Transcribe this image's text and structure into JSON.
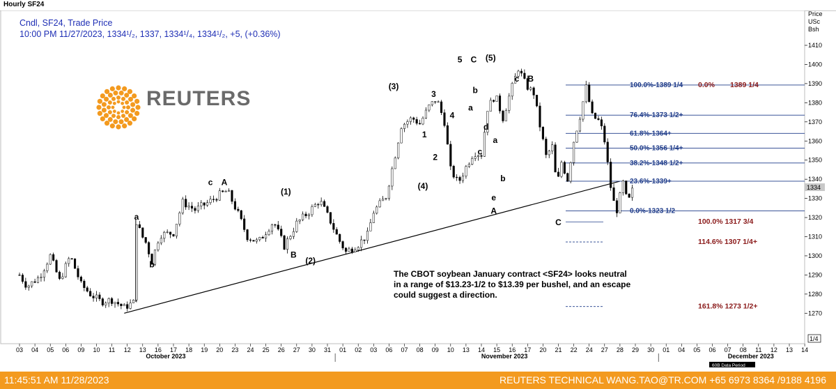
{
  "window": {
    "title": "Hourly SF24"
  },
  "header": {
    "line1": "Cndl, SF24, Trade Price",
    "line2": "10:00 PM 11/27/2023, 1334¹/₂, 1337, 1334¹/₄, 1334¹/₂, +5, (+0.36%)"
  },
  "logo": {
    "text": "REUTERS"
  },
  "price_axis": {
    "unit_line1": "Price",
    "unit_line2": "USc",
    "unit_line3": "Bsh",
    "current_label": "1334",
    "scale_label": "1/4"
  },
  "note": {
    "line1": "The CBOT soybean January contract <SF24> looks neutral",
    "line2": "in a range of $13.23-1/2 to $13.39 per bushel, and an escape",
    "line3": " could suggest a direction."
  },
  "footer": {
    "timestamp": "11:45:51 AM 11/28/2023",
    "contact": "REUTERS TECHNICAL  WANG.TAO@TR.COM  +65 6973 8364 /9188 4196"
  },
  "period_label": "60B Data Period",
  "colors": {
    "candle": "#000000",
    "fib_line": "#1f3c8a",
    "fib_red": "#8a1a1a",
    "header_text": "#1f2fb5",
    "footer_bg": "#f39a1f",
    "logo_orange": "#f39a1f",
    "logo_gray": "#6a6a6a"
  },
  "chart_data": {
    "type": "candlestick",
    "title": "Hourly SF24",
    "ylabel": "Price USc Bsh",
    "ylim": [
      1264,
      1418
    ],
    "y_ticks": [
      1270,
      1280,
      1290,
      1300,
      1310,
      1320,
      1330,
      1340,
      1350,
      1360,
      1370,
      1380,
      1390,
      1400,
      1410
    ],
    "x_ticks": [
      {
        "t": 0,
        "label": "03"
      },
      {
        "t": 1,
        "label": "04"
      },
      {
        "t": 2,
        "label": "05"
      },
      {
        "t": 3,
        "label": "06"
      },
      {
        "t": 4,
        "label": "09"
      },
      {
        "t": 5,
        "label": "10"
      },
      {
        "t": 6,
        "label": "11"
      },
      {
        "t": 7,
        "label": "12"
      },
      {
        "t": 8,
        "label": "13"
      },
      {
        "t": 9,
        "label": "16"
      },
      {
        "t": 10,
        "label": "17"
      },
      {
        "t": 11,
        "label": "18"
      },
      {
        "t": 12,
        "label": "19"
      },
      {
        "t": 13,
        "label": "20"
      },
      {
        "t": 14,
        "label": "23"
      },
      {
        "t": 15,
        "label": "24"
      },
      {
        "t": 16,
        "label": "25"
      },
      {
        "t": 17,
        "label": "26"
      },
      {
        "t": 18,
        "label": "27"
      },
      {
        "t": 19,
        "label": "30"
      },
      {
        "t": 20,
        "label": "31"
      },
      {
        "t": 21,
        "label": "01"
      },
      {
        "t": 22,
        "label": "02"
      },
      {
        "t": 23,
        "label": "03"
      },
      {
        "t": 24,
        "label": "06"
      },
      {
        "t": 25,
        "label": "07"
      },
      {
        "t": 26,
        "label": "08"
      },
      {
        "t": 27,
        "label": "09"
      },
      {
        "t": 28,
        "label": "10"
      },
      {
        "t": 29,
        "label": "13"
      },
      {
        "t": 30,
        "label": "14"
      },
      {
        "t": 31,
        "label": "15"
      },
      {
        "t": 32,
        "label": "16"
      },
      {
        "t": 33,
        "label": "17"
      },
      {
        "t": 34,
        "label": "20"
      },
      {
        "t": 35,
        "label": "21"
      },
      {
        "t": 36,
        "label": "22"
      },
      {
        "t": 37,
        "label": "24"
      },
      {
        "t": 38,
        "label": "27"
      },
      {
        "t": 39,
        "label": "28"
      },
      {
        "t": 40,
        "label": "29"
      },
      {
        "t": 41,
        "label": "30"
      },
      {
        "t": 42,
        "label": "01"
      },
      {
        "t": 43,
        "label": "04"
      },
      {
        "t": 44,
        "label": "05"
      },
      {
        "t": 45,
        "label": "06"
      },
      {
        "t": 46,
        "label": "07"
      },
      {
        "t": 47,
        "label": "08"
      },
      {
        "t": 48,
        "label": "11"
      },
      {
        "t": 49,
        "label": "12"
      },
      {
        "t": 50,
        "label": "13"
      },
      {
        "t": 51,
        "label": "14"
      }
    ],
    "months": [
      {
        "t": 9.5,
        "label": "October 2023"
      },
      {
        "t": 31.5,
        "label": "November 2023"
      },
      {
        "t": 47.5,
        "label": "December 2023"
      }
    ],
    "price_path": [
      [
        0,
        1290
      ],
      [
        0.5,
        1284
      ],
      [
        1.3,
        1289
      ],
      [
        2,
        1300
      ],
      [
        2.6,
        1287
      ],
      [
        3.3,
        1300
      ],
      [
        4,
        1285
      ],
      [
        4.6,
        1280
      ],
      [
        5.3,
        1276
      ],
      [
        6,
        1277
      ],
      [
        6.8,
        1273
      ],
      [
        7.5,
        1276
      ],
      [
        7.6,
        1318
      ],
      [
        7.9,
        1311
      ],
      [
        8.2,
        1307
      ],
      [
        8.6,
        1297
      ],
      [
        9.1,
        1311
      ],
      [
        10,
        1312
      ],
      [
        10.6,
        1328
      ],
      [
        11.4,
        1324
      ],
      [
        12.3,
        1328
      ],
      [
        13.0,
        1332
      ],
      [
        13.5,
        1334
      ],
      [
        14.2,
        1322
      ],
      [
        14.8,
        1310
      ],
      [
        15.5,
        1307
      ],
      [
        16.5,
        1318
      ],
      [
        17.2,
        1305
      ],
      [
        18.0,
        1317
      ],
      [
        18.8,
        1323
      ],
      [
        19.5,
        1329
      ],
      [
        20.2,
        1318
      ],
      [
        20.7,
        1309
      ],
      [
        21.2,
        1302
      ],
      [
        22.0,
        1306
      ],
      [
        22.6,
        1311
      ],
      [
        23.0,
        1323
      ],
      [
        23.8,
        1331
      ],
      [
        24.3,
        1349
      ],
      [
        24.8,
        1368
      ],
      [
        25.5,
        1372
      ],
      [
        26.0,
        1369
      ],
      [
        26.6,
        1378
      ],
      [
        27.1,
        1382
      ],
      [
        27.6,
        1370
      ],
      [
        28.0,
        1345
      ],
      [
        28.5,
        1338
      ],
      [
        29.1,
        1348
      ],
      [
        29.5,
        1354
      ],
      [
        30.0,
        1353
      ],
      [
        30.4,
        1377
      ],
      [
        30.9,
        1384
      ],
      [
        31.4,
        1372
      ],
      [
        31.9,
        1386
      ],
      [
        32.4,
        1398
      ],
      [
        32.9,
        1389
      ],
      [
        33.4,
        1385
      ],
      [
        33.8,
        1368
      ],
      [
        34.2,
        1352
      ],
      [
        34.6,
        1357
      ],
      [
        34.9,
        1336
      ],
      [
        35.2,
        1349
      ],
      [
        35.6,
        1340
      ],
      [
        36.0,
        1360
      ],
      [
        36.4,
        1373
      ],
      [
        36.8,
        1388
      ],
      [
        37.2,
        1373
      ],
      [
        37.7,
        1370
      ],
      [
        38.0,
        1360
      ],
      [
        38.5,
        1330
      ],
      [
        38.8,
        1324
      ],
      [
        39.2,
        1338
      ],
      [
        39.5,
        1327
      ],
      [
        39.8,
        1334
      ]
    ],
    "trendline": {
      "start": [
        6.8,
        1270
      ],
      "end": [
        39.0,
        1339
      ]
    },
    "fib_levels": [
      {
        "price": 1389.25,
        "label": "100.0%-1389 1/4",
        "extra_pct": "0.0%",
        "extra_val": "1389 1/4"
      },
      {
        "price": 1373.5,
        "label": "76.4%-1373 1/2+"
      },
      {
        "price": 1364,
        "label": "61.8%-1364+"
      },
      {
        "price": 1356.25,
        "label": "50.0%-1356 1/4+"
      },
      {
        "price": 1348.5,
        "label": "38.2%-1348 1/2+"
      },
      {
        "price": 1339,
        "label": "23.6%-1339+"
      },
      {
        "price": 1323.5,
        "label": "0.0%-1323 1/2"
      }
    ],
    "fib_targets": [
      {
        "price": 1317.75,
        "label": "100.0% 1317 3/4"
      },
      {
        "price": 1307.25,
        "label": "114.6% 1307 1/4+"
      },
      {
        "price": 1273.5,
        "label": "161.8% 1273 1/2+"
      }
    ],
    "wave_labels": [
      {
        "t": 7.6,
        "p": 1319,
        "label": "a"
      },
      {
        "t": 8.6,
        "p": 1294,
        "label": "b"
      },
      {
        "t": 12.4,
        "p": 1337,
        "label": "c"
      },
      {
        "t": 13.3,
        "p": 1337,
        "label": "A"
      },
      {
        "t": 17.8,
        "p": 1299,
        "label": "B"
      },
      {
        "t": 17.3,
        "p": 1332,
        "label": "(1)"
      },
      {
        "t": 18.9,
        "p": 1296,
        "label": "(2)"
      },
      {
        "t": 24.3,
        "p": 1387,
        "label": "(3)"
      },
      {
        "t": 26.2,
        "p": 1335,
        "label": "(4)"
      },
      {
        "t": 26.3,
        "p": 1362,
        "label": "1"
      },
      {
        "t": 27.0,
        "p": 1350,
        "label": "2"
      },
      {
        "t": 26.9,
        "p": 1383,
        "label": "3"
      },
      {
        "t": 28.1,
        "p": 1372,
        "label": "4"
      },
      {
        "t": 28.6,
        "p": 1401,
        "label": "5"
      },
      {
        "t": 29.5,
        "p": 1401,
        "label": "C"
      },
      {
        "t": 30.6,
        "p": 1402,
        "label": "(5)"
      },
      {
        "t": 29.6,
        "p": 1385,
        "label": "b"
      },
      {
        "t": 29.3,
        "p": 1376,
        "label": "a"
      },
      {
        "t": 30.3,
        "p": 1366,
        "label": "d"
      },
      {
        "t": 29.9,
        "p": 1353,
        "label": "c"
      },
      {
        "t": 30.9,
        "p": 1359,
        "label": "a"
      },
      {
        "t": 31.4,
        "p": 1339,
        "label": "b"
      },
      {
        "t": 30.8,
        "p": 1329,
        "label": "e"
      },
      {
        "t": 30.8,
        "p": 1322,
        "label": "A"
      },
      {
        "t": 32.3,
        "p": 1391,
        "label": "c"
      },
      {
        "t": 33.2,
        "p": 1391,
        "label": "B"
      },
      {
        "t": 35.0,
        "p": 1316,
        "label": "C"
      }
    ]
  }
}
